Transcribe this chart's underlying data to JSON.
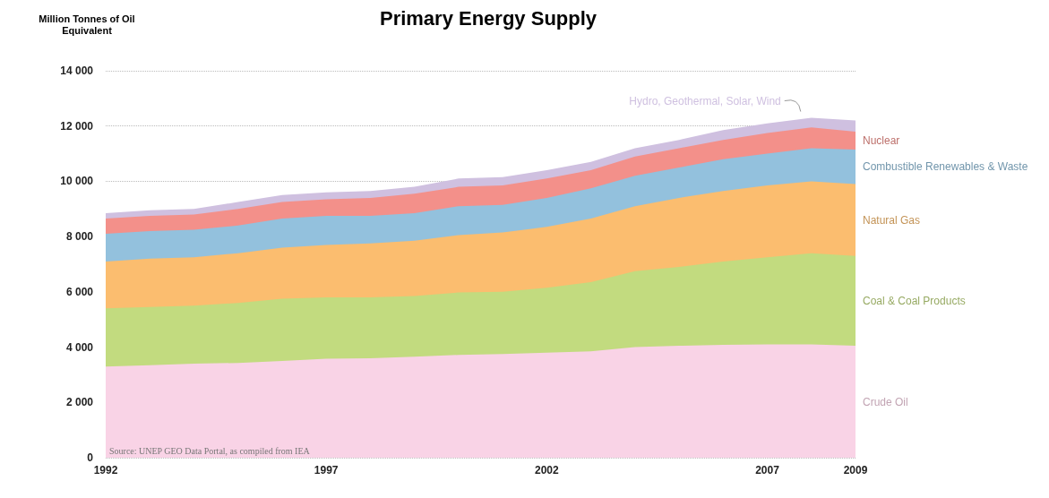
{
  "chart_data": {
    "type": "area",
    "title": "Primary Energy Supply",
    "ylabel": "Million Tonnes of Oil\nEquivalent",
    "stacked": true,
    "grid": "y",
    "legend": false,
    "x": [
      1992,
      1993,
      1994,
      1995,
      1996,
      1997,
      1998,
      1999,
      2000,
      2001,
      2002,
      2003,
      2004,
      2005,
      2006,
      2007,
      2008,
      2009
    ],
    "xlim": [
      1992,
      2009
    ],
    "xticks": [
      1992,
      1997,
      2002,
      2007,
      2009
    ],
    "ylim": [
      0,
      14000
    ],
    "yticks": [
      0,
      {
        "value": 2000,
        "label": "2 000"
      },
      {
        "value": 4000,
        "label": "4 000"
      },
      {
        "value": 6000,
        "label": "6 000"
      },
      {
        "value": 8000,
        "label": "8 000"
      },
      {
        "value": 10000,
        "label": "10 000"
      },
      {
        "value": 12000,
        "label": "12 000"
      },
      {
        "value": 14000,
        "label": "14 000"
      }
    ],
    "series": [
      {
        "name": "Crude Oil",
        "color": "#f9d3e6",
        "values": [
          3300,
          3350,
          3400,
          3430,
          3500,
          3580,
          3600,
          3650,
          3720,
          3750,
          3800,
          3850,
          4000,
          4050,
          4080,
          4100,
          4100,
          4050
        ]
      },
      {
        "name": "Coal & Coal Products",
        "color": "#c2db7f",
        "values": [
          2100,
          2100,
          2100,
          2170,
          2250,
          2220,
          2200,
          2200,
          2260,
          2250,
          2350,
          2500,
          2750,
          2850,
          3020,
          3150,
          3300,
          3250
        ]
      },
      {
        "name": "Natural Gas",
        "color": "#fbbd6f",
        "values": [
          1700,
          1750,
          1750,
          1800,
          1850,
          1900,
          1950,
          2000,
          2070,
          2150,
          2200,
          2300,
          2350,
          2500,
          2550,
          2600,
          2600,
          2600
        ]
      },
      {
        "name": "Combustible Renewables & Waste",
        "color": "#93c1dd",
        "values": [
          1000,
          1000,
          1000,
          1000,
          1050,
          1050,
          1000,
          1000,
          1050,
          1000,
          1050,
          1100,
          1100,
          1100,
          1150,
          1150,
          1200,
          1250
        ]
      },
      {
        "name": "Nuclear",
        "color": "#f3908a",
        "values": [
          550,
          550,
          550,
          600,
          600,
          600,
          650,
          700,
          700,
          700,
          700,
          650,
          700,
          700,
          700,
          750,
          750,
          650
        ]
      },
      {
        "name": "Hydro, Geothermal, Solar, Wind",
        "color": "#cfc0e0",
        "values": [
          200,
          200,
          200,
          250,
          250,
          250,
          250,
          250,
          300,
          300,
          300,
          300,
          300,
          300,
          350,
          350,
          350,
          400
        ]
      }
    ],
    "annotations": [
      "Source: UNEP GEO Data Portal, as compiled from IEA"
    ]
  }
}
